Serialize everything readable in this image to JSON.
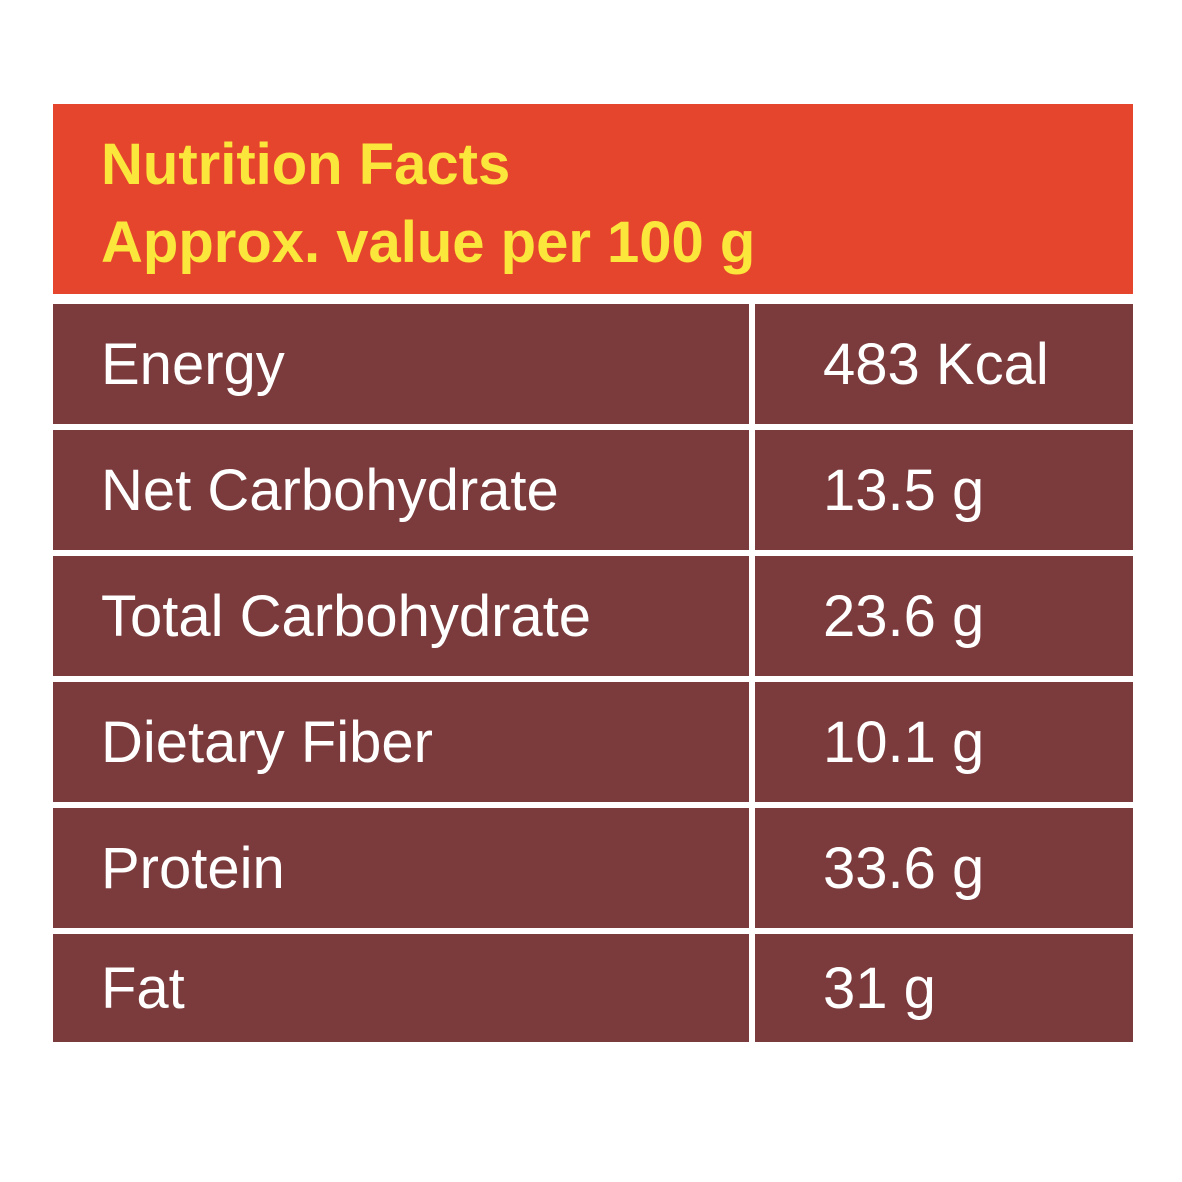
{
  "header": {
    "title": "Nutrition Facts",
    "subtitle": "Approx. value per 100 g"
  },
  "rows": [
    {
      "label": "Energy",
      "value": "483 Kcal"
    },
    {
      "label": "Net Carbohydrate",
      "value": "13.5 g"
    },
    {
      "label": "Total Carbohydrate",
      "value": "23.6 g"
    },
    {
      "label": "Dietary Fiber",
      "value": "10.1 g"
    },
    {
      "label": "Protein",
      "value": "33.6 g"
    },
    {
      "label": "Fat",
      "value": "31 g"
    }
  ],
  "colors": {
    "header_bg": "#e6452d",
    "header_text": "#fbe73c",
    "row_bg": "#7b3a3b",
    "row_text": "#ffffff"
  }
}
